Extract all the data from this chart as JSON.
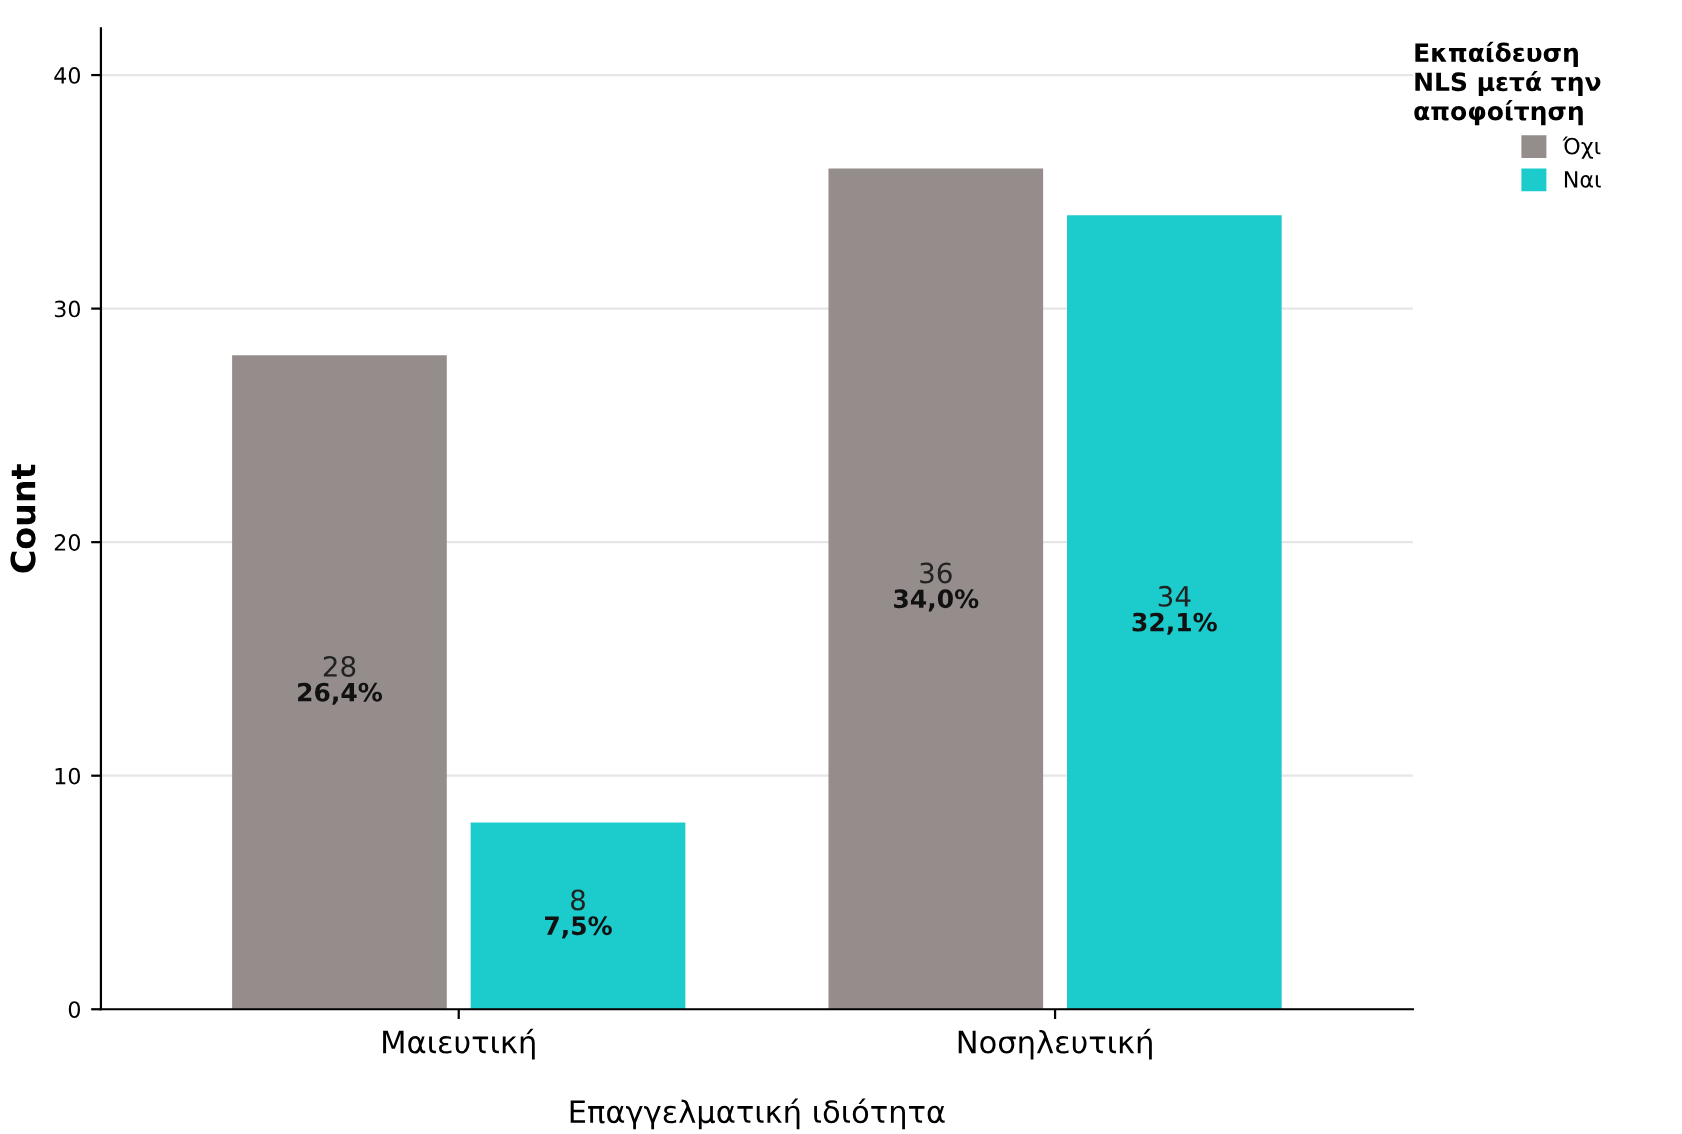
{
  "chart_data": {
    "type": "bar",
    "xlabel": "Επαγγελματική ιδιότητα",
    "ylabel": "Count",
    "legend_title": "Εκπαίδευση\nNLS μετά την\nαποφοίτηση",
    "categories": [
      "Μαιευτική",
      "Νοσηλευτική"
    ],
    "series": [
      {
        "name": "Όχι",
        "color": "#958d8c",
        "values": [
          28,
          36
        ],
        "value_labels": [
          "28\n26,4%",
          "36\n34,0%"
        ]
      },
      {
        "name": "Ναι",
        "color": "#1ccbcc",
        "values": [
          8,
          34
        ],
        "value_labels": [
          "8\n7,5%",
          "34\n32,1%"
        ]
      }
    ],
    "ylim": [
      0,
      42
    ],
    "yticks": [
      0,
      10,
      20,
      30,
      40
    ],
    "grid": "y",
    "legend": "top right"
  }
}
